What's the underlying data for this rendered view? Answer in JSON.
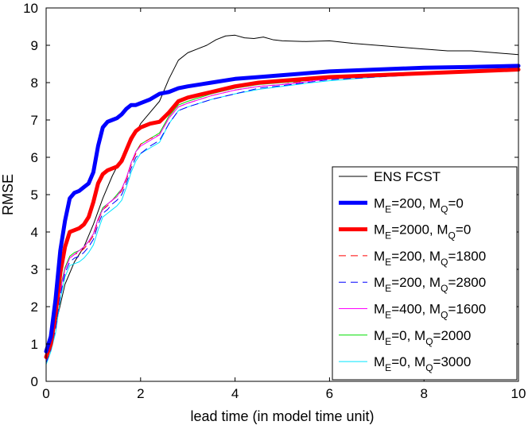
{
  "chart_data": {
    "type": "line",
    "title": "",
    "xlabel": "lead time (in model time unit)",
    "ylabel": "RMSE",
    "xlim": [
      0,
      10
    ],
    "ylim": [
      0,
      10
    ],
    "xticks": [
      "0",
      "2",
      "4",
      "6",
      "8",
      "10"
    ],
    "yticks": [
      "0",
      "1",
      "2",
      "3",
      "4",
      "5",
      "6",
      "7",
      "8",
      "9",
      "10"
    ],
    "grid": false,
    "legend_position": "lower-right",
    "series": [
      {
        "name": "ENS FCST",
        "legend": {
          "main": "ENS FCST"
        },
        "color": "#000000",
        "style": "solid",
        "weight": "thin",
        "x": [
          0,
          0.2,
          0.4,
          0.6,
          0.8,
          1.0,
          1.2,
          1.4,
          1.6,
          1.8,
          2.0,
          2.2,
          2.4,
          2.6,
          2.8,
          3.0,
          3.2,
          3.4,
          3.6,
          3.8,
          4.0,
          4.2,
          4.4,
          4.6,
          4.8,
          5.0,
          5.5,
          6.0,
          6.5,
          7.0,
          7.5,
          8.0,
          8.5,
          9.0,
          9.5,
          10.0
        ],
        "values": [
          0.8,
          1.5,
          2.6,
          3.2,
          3.6,
          4.2,
          4.9,
          5.5,
          6.0,
          6.4,
          6.9,
          7.2,
          7.5,
          8.1,
          8.6,
          8.8,
          8.9,
          9.0,
          9.15,
          9.25,
          9.27,
          9.2,
          9.18,
          9.22,
          9.15,
          9.12,
          9.1,
          9.12,
          9.05,
          9.0,
          8.95,
          8.9,
          8.85,
          8.85,
          8.8,
          8.75
        ]
      },
      {
        "name": "M_E=200, M_Q=0",
        "legend": {
          "m1": "M",
          "s1": "E",
          "v1": "=200, M",
          "s2": "Q",
          "v2": "=0"
        },
        "color": "#0000ff",
        "style": "solid",
        "weight": "thick",
        "x": [
          0,
          0.1,
          0.2,
          0.3,
          0.4,
          0.5,
          0.6,
          0.7,
          0.8,
          0.9,
          1.0,
          1.1,
          1.2,
          1.3,
          1.4,
          1.5,
          1.6,
          1.7,
          1.8,
          1.9,
          2.0,
          2.2,
          2.4,
          2.6,
          2.8,
          3.0,
          3.5,
          4.0,
          4.5,
          5.0,
          5.5,
          6.0,
          7.0,
          8.0,
          9.0,
          10.0
        ],
        "values": [
          0.8,
          1.2,
          2.2,
          3.5,
          4.3,
          4.9,
          5.05,
          5.1,
          5.2,
          5.3,
          5.6,
          6.3,
          6.8,
          6.95,
          7.0,
          7.05,
          7.15,
          7.3,
          7.4,
          7.4,
          7.45,
          7.55,
          7.7,
          7.75,
          7.85,
          7.9,
          8.0,
          8.1,
          8.15,
          8.2,
          8.25,
          8.3,
          8.35,
          8.4,
          8.42,
          8.45
        ]
      },
      {
        "name": "M_E=2000, M_Q=0",
        "legend": {
          "m1": "M",
          "s1": "E",
          "v1": "=2000, M",
          "s2": "Q",
          "v2": "=0"
        },
        "color": "#ff0000",
        "style": "solid",
        "weight": "thick",
        "x": [
          0,
          0.1,
          0.2,
          0.3,
          0.4,
          0.5,
          0.6,
          0.7,
          0.8,
          0.9,
          1.0,
          1.1,
          1.2,
          1.3,
          1.4,
          1.5,
          1.6,
          1.7,
          1.8,
          1.9,
          2.0,
          2.2,
          2.4,
          2.6,
          2.8,
          3.0,
          3.5,
          4.0,
          4.5,
          5.0,
          5.5,
          6.0,
          7.0,
          8.0,
          9.0,
          10.0
        ],
        "values": [
          0.65,
          1.0,
          1.8,
          2.9,
          3.6,
          4.0,
          4.05,
          4.1,
          4.2,
          4.4,
          4.8,
          5.3,
          5.55,
          5.65,
          5.7,
          5.75,
          5.9,
          6.2,
          6.5,
          6.7,
          6.8,
          6.9,
          6.95,
          7.2,
          7.5,
          7.6,
          7.75,
          7.9,
          8.0,
          8.05,
          8.1,
          8.15,
          8.2,
          8.25,
          8.3,
          8.35
        ]
      },
      {
        "name": "M_E=200, M_Q=1800",
        "legend": {
          "m1": "M",
          "s1": "E",
          "v1": "=200, M",
          "s2": "Q",
          "v2": "=1800"
        },
        "color": "#ff0000",
        "style": "dashed",
        "weight": "thin",
        "x": [
          0,
          0.1,
          0.2,
          0.3,
          0.4,
          0.5,
          0.6,
          0.7,
          0.8,
          0.9,
          1.0,
          1.1,
          1.2,
          1.3,
          1.4,
          1.5,
          1.6,
          1.7,
          1.8,
          1.9,
          2.0,
          2.2,
          2.4,
          2.6,
          2.8,
          3.0,
          3.5,
          4.0,
          4.5,
          5.0,
          5.5,
          6.0,
          7.0,
          8.0,
          9.0,
          10.0
        ],
        "values": [
          0.55,
          0.9,
          1.5,
          2.4,
          3.0,
          3.3,
          3.4,
          3.45,
          3.55,
          3.7,
          3.9,
          4.3,
          4.6,
          4.7,
          4.85,
          4.95,
          5.1,
          5.4,
          5.8,
          6.1,
          6.35,
          6.5,
          6.6,
          7.05,
          7.35,
          7.45,
          7.65,
          7.8,
          7.9,
          7.95,
          8.05,
          8.1,
          8.2,
          8.25,
          8.3,
          8.35
        ]
      },
      {
        "name": "M_E=200, M_Q=2800",
        "legend": {
          "m1": "M",
          "s1": "E",
          "v1": "=200, M",
          "s2": "Q",
          "v2": "=2800"
        },
        "color": "#0000ff",
        "style": "dashed",
        "weight": "thin",
        "x": [
          0,
          0.1,
          0.2,
          0.3,
          0.4,
          0.5,
          0.6,
          0.7,
          0.8,
          0.9,
          1.0,
          1.1,
          1.2,
          1.3,
          1.4,
          1.5,
          1.6,
          1.7,
          1.8,
          1.9,
          2.0,
          2.2,
          2.4,
          2.6,
          2.8,
          3.0,
          3.5,
          4.0,
          4.5,
          5.0,
          5.5,
          6.0,
          7.0,
          8.0,
          9.0,
          10.0
        ],
        "values": [
          0.5,
          0.85,
          1.4,
          2.3,
          2.9,
          3.2,
          3.3,
          3.35,
          3.45,
          3.6,
          3.8,
          4.2,
          4.5,
          4.6,
          4.75,
          4.85,
          5.0,
          5.3,
          5.7,
          6.0,
          6.1,
          6.3,
          6.45,
          6.9,
          7.25,
          7.35,
          7.55,
          7.7,
          7.85,
          7.92,
          8.0,
          8.08,
          8.15,
          8.22,
          8.28,
          8.33
        ]
      },
      {
        "name": "M_E=400, M_Q=1600",
        "legend": {
          "m1": "M",
          "s1": "E",
          "v1": "=400, M",
          "s2": "Q",
          "v2": "=1600"
        },
        "color": "#ff00ff",
        "style": "solid",
        "weight": "thin",
        "x": [
          0,
          0.1,
          0.2,
          0.3,
          0.4,
          0.5,
          0.6,
          0.7,
          0.8,
          0.9,
          1.0,
          1.1,
          1.2,
          1.3,
          1.4,
          1.5,
          1.6,
          1.7,
          1.8,
          1.9,
          2.0,
          2.2,
          2.4,
          2.6,
          2.8,
          3.0,
          3.5,
          4.0,
          4.5,
          5.0,
          5.5,
          6.0,
          7.0,
          8.0,
          9.0,
          10.0
        ],
        "values": [
          0.55,
          0.9,
          1.5,
          2.45,
          3.0,
          3.3,
          3.4,
          3.5,
          3.6,
          3.75,
          3.95,
          4.35,
          4.6,
          4.75,
          4.85,
          4.95,
          5.15,
          5.45,
          5.85,
          6.15,
          6.3,
          6.45,
          6.6,
          7.05,
          7.35,
          7.45,
          7.65,
          7.8,
          7.9,
          7.95,
          8.02,
          8.1,
          8.18,
          8.25,
          8.3,
          8.35
        ]
      },
      {
        "name": "M_E=0, M_Q=2000",
        "legend": {
          "m1": "M",
          "s1": "E",
          "v1": "=0, M",
          "s2": "Q",
          "v2": "=2000"
        },
        "color": "#00dd00",
        "style": "solid",
        "weight": "thin",
        "x": [
          0,
          0.1,
          0.2,
          0.3,
          0.4,
          0.5,
          0.6,
          0.7,
          0.8,
          0.9,
          1.0,
          1.1,
          1.2,
          1.3,
          1.4,
          1.5,
          1.6,
          1.7,
          1.8,
          1.9,
          2.0,
          2.2,
          2.4,
          2.6,
          2.8,
          3.0,
          3.5,
          4.0,
          4.5,
          5.0,
          5.5,
          6.0,
          7.0,
          8.0,
          9.0,
          10.0
        ],
        "values": [
          0.55,
          0.9,
          1.55,
          2.5,
          3.05,
          3.35,
          3.45,
          3.5,
          3.6,
          3.75,
          3.95,
          4.35,
          4.65,
          4.75,
          4.85,
          5.0,
          5.15,
          5.45,
          5.85,
          6.15,
          6.35,
          6.5,
          6.65,
          7.1,
          7.4,
          7.5,
          7.7,
          7.85,
          7.95,
          8.0,
          8.05,
          8.12,
          8.2,
          8.25,
          8.3,
          8.35
        ]
      },
      {
        "name": "M_E=0, M_Q=3000",
        "legend": {
          "m1": "M",
          "s1": "E",
          "v1": "=0, M",
          "s2": "Q",
          "v2": "=3000"
        },
        "color": "#00e5ff",
        "style": "solid",
        "weight": "thin",
        "x": [
          0,
          0.1,
          0.2,
          0.3,
          0.4,
          0.5,
          0.6,
          0.7,
          0.8,
          0.9,
          1.0,
          1.1,
          1.2,
          1.3,
          1.4,
          1.5,
          1.6,
          1.7,
          1.8,
          1.9,
          2.0,
          2.2,
          2.4,
          2.6,
          2.8,
          3.0,
          3.5,
          4.0,
          4.5,
          5.0,
          5.5,
          6.0,
          7.0,
          8.0,
          9.0,
          10.0
        ],
        "values": [
          0.45,
          0.8,
          1.3,
          2.2,
          2.8,
          3.1,
          3.15,
          3.2,
          3.3,
          3.45,
          3.65,
          4.05,
          4.4,
          4.5,
          4.6,
          4.7,
          4.85,
          5.2,
          5.6,
          5.9,
          6.1,
          6.25,
          6.4,
          6.9,
          7.25,
          7.35,
          7.55,
          7.7,
          7.82,
          7.9,
          7.98,
          8.05,
          8.15,
          8.22,
          8.28,
          8.32
        ]
      }
    ]
  }
}
